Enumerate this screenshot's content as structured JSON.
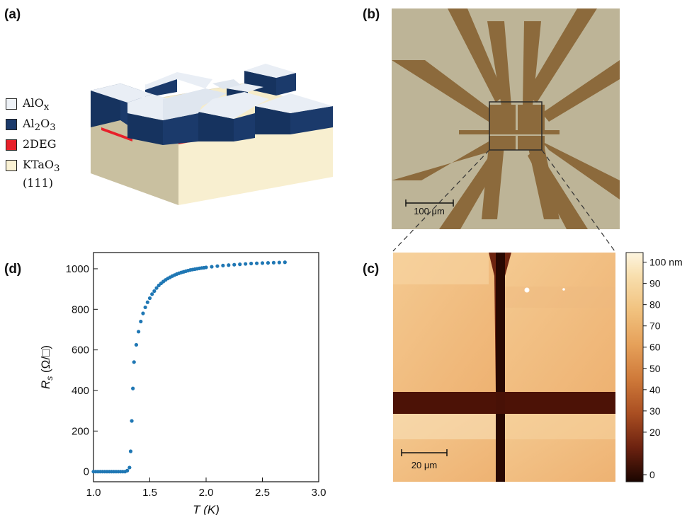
{
  "panel_labels": {
    "a": "(a)",
    "b": "(b)",
    "c": "(c)",
    "d": "(d)"
  },
  "legend": [
    {
      "label": "AlO",
      "sub": "x",
      "rest": "",
      "color": "#eef2f7"
    },
    {
      "label": "Al",
      "sub": "2",
      "rest": "O",
      "sub2": "3",
      "color": "#1b3a6b"
    },
    {
      "label": "2DEG",
      "sub": "",
      "rest": "",
      "color": "#e8202a"
    },
    {
      "label": "KTaO",
      "sub": "3",
      "rest": "",
      "line2": "(111)",
      "color": "#faf2d4"
    }
  ],
  "micrograph": {
    "scale_bar": "100 μm"
  },
  "afm": {
    "scale_bar": "20 μm",
    "colorbar_ticks": [
      "100 nm",
      "90",
      "80",
      "70",
      "60",
      "50",
      "40",
      "30",
      "20",
      "0"
    ]
  },
  "chart_data": {
    "type": "scatter",
    "title": "",
    "xlabel": "T (K)",
    "ylabel": "R_s (Ω/□)",
    "xlim": [
      1.0,
      3.0
    ],
    "ylim": [
      -50,
      1080
    ],
    "xticks": [
      "1.0",
      "1.5",
      "2.0",
      "2.5",
      "3.0"
    ],
    "yticks": [
      "0",
      "200",
      "400",
      "600",
      "800",
      "1000"
    ],
    "grid": false,
    "color": "#1f77b4",
    "series": [
      {
        "x": [
          1.0,
          1.02,
          1.04,
          1.06,
          1.08,
          1.1,
          1.12,
          1.14,
          1.16,
          1.18,
          1.2,
          1.22,
          1.24,
          1.26,
          1.28,
          1.3,
          1.32,
          1.33,
          1.34,
          1.35,
          1.36,
          1.38,
          1.4,
          1.42,
          1.44,
          1.46,
          1.48,
          1.5,
          1.52,
          1.54,
          1.56,
          1.58,
          1.6,
          1.62,
          1.64,
          1.66,
          1.68,
          1.7,
          1.72,
          1.74,
          1.76,
          1.78,
          1.8,
          1.82,
          1.84,
          1.86,
          1.88,
          1.9,
          1.92,
          1.94,
          1.96,
          1.98,
          2.0,
          2.05,
          2.1,
          2.15,
          2.2,
          2.25,
          2.3,
          2.35,
          2.4,
          2.45,
          2.5,
          2.55,
          2.6,
          2.65,
          2.7
        ],
        "y": [
          0,
          0,
          0,
          0,
          0,
          0,
          0,
          0,
          0,
          0,
          0,
          0,
          0,
          0,
          0,
          5,
          20,
          100,
          250,
          410,
          540,
          625,
          690,
          740,
          780,
          810,
          835,
          855,
          875,
          890,
          905,
          918,
          928,
          937,
          945,
          952,
          958,
          964,
          969,
          974,
          978,
          982,
          985,
          988,
          991,
          994,
          996,
          998,
          1000,
          1002,
          1004,
          1005,
          1007,
          1010,
          1013,
          1016,
          1018,
          1020,
          1022,
          1024,
          1026,
          1027,
          1028,
          1029,
          1030,
          1031,
          1032
        ]
      }
    ]
  }
}
